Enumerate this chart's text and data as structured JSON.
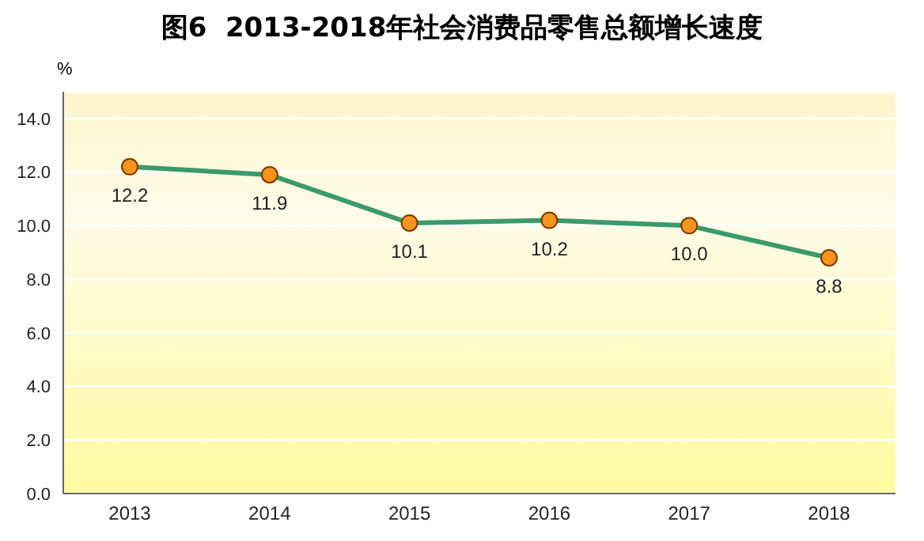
{
  "chart_data": {
    "type": "line",
    "title": "图6  2013-2018年社会消费品零售总额增长速度",
    "ylabel": "%",
    "categories": [
      "2013",
      "2014",
      "2015",
      "2016",
      "2017",
      "2018"
    ],
    "series": [
      {
        "color": "#3a9a6a",
        "values": [
          12.2,
          11.9,
          10.1,
          10.2,
          10.0,
          8.8
        ],
        "value_labels": [
          "12.2",
          "11.9",
          "10.1",
          "10.2",
          "10.0",
          "8.8"
        ]
      }
    ],
    "ylim": [
      0,
      15
    ],
    "yticks": [
      {
        "value": 0,
        "label": "0.0"
      },
      {
        "value": 2,
        "label": "2.0"
      },
      {
        "value": 4,
        "label": "4.0"
      },
      {
        "value": 6,
        "label": "6.0"
      },
      {
        "value": 8,
        "label": "8.0"
      },
      {
        "value": 10,
        "label": "10.0"
      },
      {
        "value": 12,
        "label": "12.0"
      },
      {
        "value": 14,
        "label": "14.0"
      }
    ],
    "grid": "y",
    "marker": "circle",
    "line_style": "solid"
  }
}
